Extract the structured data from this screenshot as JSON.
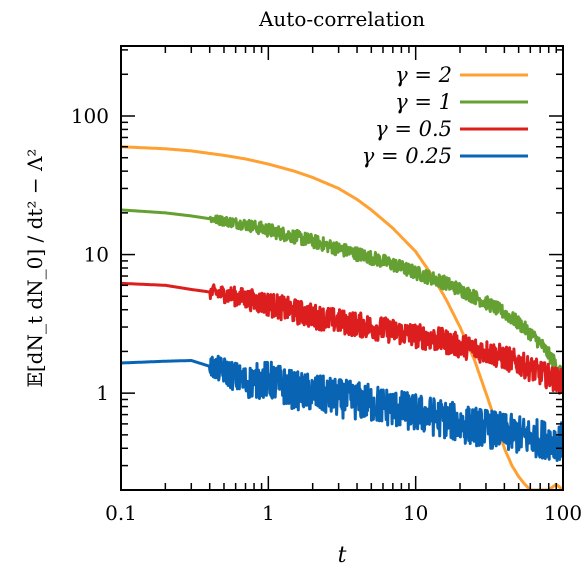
{
  "chart_data": {
    "type": "line",
    "title": "Auto-correlation",
    "xlabel": "t",
    "ylabel": "𝔼[dN_t dN_0] / dt² − Λ²",
    "xscale": "log",
    "yscale": "log",
    "xlim": [
      0.1,
      100
    ],
    "ylim": [
      0.2,
      320
    ],
    "x_ticks": [
      0.1,
      1,
      10,
      100
    ],
    "x_tick_labels": [
      "0.1",
      "1",
      "10",
      "100"
    ],
    "y_ticks": [
      1,
      10,
      100
    ],
    "y_tick_labels": [
      "1",
      "10",
      "100"
    ],
    "grid": false,
    "legend_position": "top-right",
    "series": [
      {
        "name": "γ = 2",
        "color": "#ffa032",
        "x": [
          0.1,
          0.2,
          0.3,
          0.5,
          0.7,
          1,
          1.5,
          2,
          3,
          4,
          5,
          7,
          10,
          13,
          16,
          20,
          25,
          30,
          35,
          40,
          45,
          50,
          55,
          60,
          70,
          80,
          90,
          100
        ],
        "values": [
          60,
          58,
          56,
          52,
          49,
          45,
          40,
          36,
          30,
          25,
          21,
          15.5,
          10.5,
          7,
          4.8,
          3,
          1.75,
          1.0,
          0.62,
          0.4,
          0.3,
          0.25,
          0.22,
          0.2,
          0.2,
          0.2,
          0.22,
          0.2
        ],
        "noise": 0.0
      },
      {
        "name": "γ = 1",
        "color": "#64a032",
        "x": [
          0.1,
          0.2,
          0.3,
          0.5,
          0.7,
          1,
          1.5,
          2,
          3,
          5,
          7,
          10,
          15,
          20,
          30,
          40,
          50,
          60,
          70,
          80,
          90,
          100
        ],
        "values": [
          21,
          20,
          19,
          17.5,
          16.5,
          15,
          13.5,
          12.5,
          11,
          9.5,
          8.5,
          7.4,
          6.4,
          5.6,
          4.5,
          3.8,
          3.2,
          2.7,
          2.3,
          1.9,
          1.6,
          1.35
        ],
        "noise": 0.05
      },
      {
        "name": "γ = 0.5",
        "color": "#dc1e1e",
        "x": [
          0.1,
          0.2,
          0.3,
          0.5,
          0.7,
          1,
          1.5,
          2,
          3,
          5,
          7,
          10,
          15,
          20,
          30,
          40,
          50,
          60,
          70,
          80,
          90,
          100
        ],
        "values": [
          6.2,
          6.0,
          5.6,
          5.2,
          4.8,
          4.4,
          3.9,
          3.6,
          3.3,
          3.0,
          2.8,
          2.6,
          2.4,
          2.2,
          2.0,
          1.8,
          1.65,
          1.5,
          1.4,
          1.32,
          1.25,
          1.2
        ],
        "noise": 0.09
      },
      {
        "name": "γ = 0.25",
        "color": "#0a64b4",
        "x": [
          0.1,
          0.2,
          0.3,
          0.5,
          0.7,
          1,
          1.5,
          2,
          3,
          5,
          7,
          10,
          15,
          20,
          30,
          40,
          50,
          60,
          70,
          80,
          90,
          100
        ],
        "values": [
          1.65,
          1.7,
          1.72,
          1.45,
          1.2,
          1.25,
          1.05,
          1.0,
          0.92,
          0.85,
          0.78,
          0.72,
          0.66,
          0.6,
          0.56,
          0.52,
          0.5,
          0.48,
          0.47,
          0.46,
          0.45,
          0.45
        ],
        "noise": 0.14
      }
    ]
  }
}
